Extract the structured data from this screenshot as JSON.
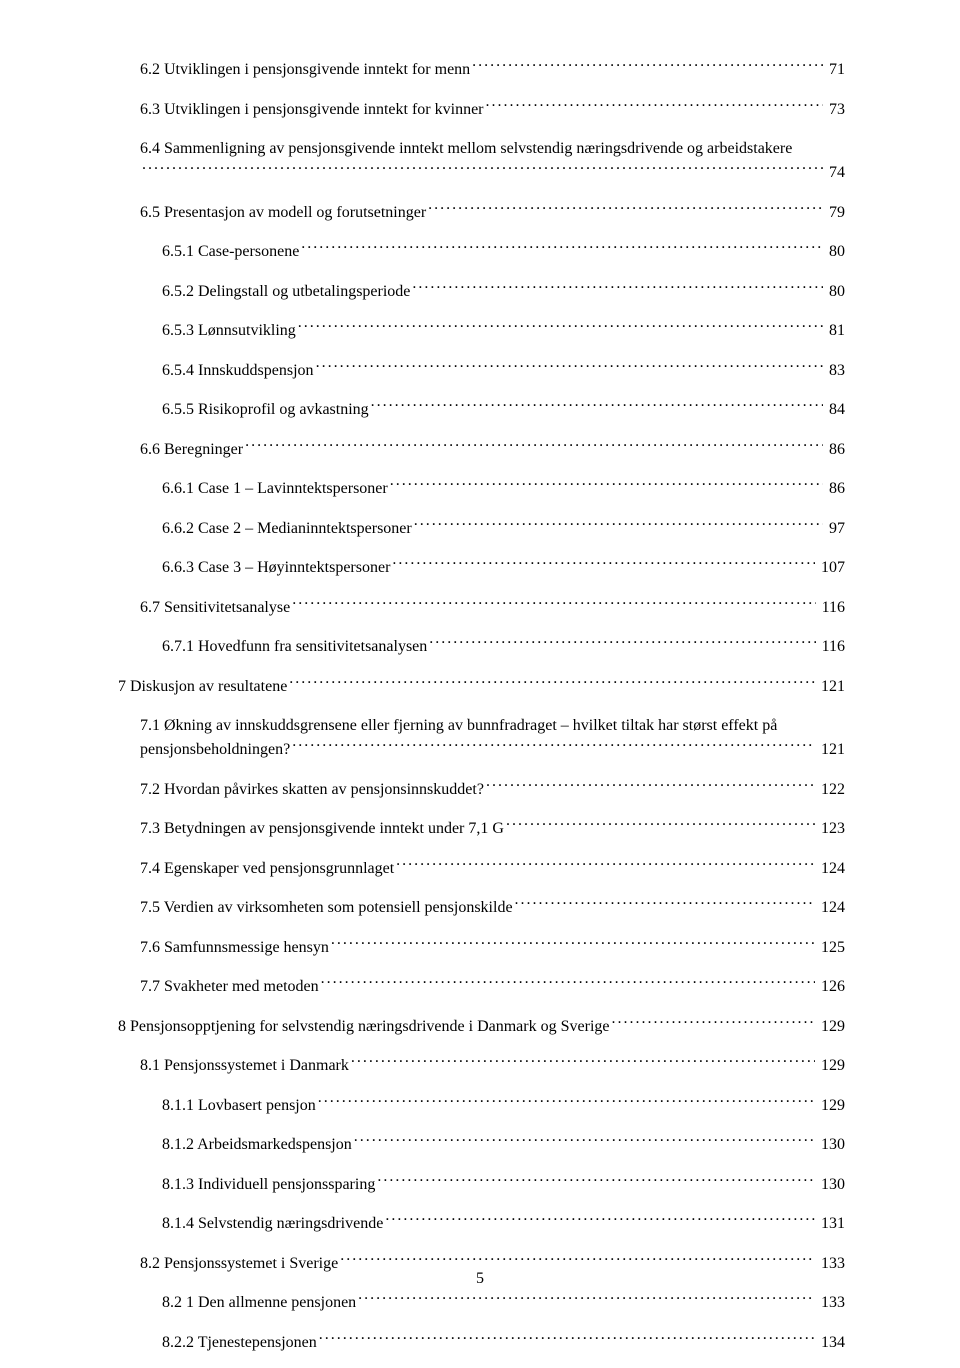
{
  "page_number": "5",
  "entries": [
    {
      "level": 2,
      "title": "6.2 Utviklingen i pensjonsgivende inntekt for menn",
      "page": "71"
    },
    {
      "level": 2,
      "title": "6.3 Utviklingen i pensjonsgivende inntekt for kvinner",
      "page": "73"
    },
    {
      "level": 2,
      "wrap": true,
      "line1": "6.4 Sammenligning av pensjonsgivende inntekt mellom selvstendig næringsdrivende og arbeidstakere",
      "page": "74"
    },
    {
      "level": 2,
      "title": "6.5 Presentasjon av modell og forutsetninger",
      "page": "79"
    },
    {
      "level": 3,
      "title": "6.5.1 Case-personene",
      "page": "80"
    },
    {
      "level": 3,
      "title": "6.5.2 Delingstall og utbetalingsperiode",
      "page": "80"
    },
    {
      "level": 3,
      "title": "6.5.3 Lønnsutvikling",
      "page": "81"
    },
    {
      "level": 3,
      "title": "6.5.4 Innskuddspensjon",
      "page": "83"
    },
    {
      "level": 3,
      "title": "6.5.5 Risikoprofil og avkastning",
      "page": "84"
    },
    {
      "level": 2,
      "title": "6.6 Beregninger",
      "page": "86"
    },
    {
      "level": 3,
      "title": "6.6.1 Case 1 – Lavinntektspersoner",
      "page": "86"
    },
    {
      "level": 3,
      "title": "6.6.2 Case 2 – Medianinntektspersoner",
      "page": "97"
    },
    {
      "level": 3,
      "title": "6.6.3 Case 3 – Høyinntektspersoner",
      "page": "107"
    },
    {
      "level": 2,
      "title": "6.7 Sensitivitetsanalyse",
      "page": "116"
    },
    {
      "level": 3,
      "title": "6.7.1 Hovedfunn fra sensitivitetsanalysen",
      "page": "116"
    },
    {
      "level": 1,
      "title": "7 Diskusjon av resultatene",
      "page": "121"
    },
    {
      "level": 2,
      "wrap": true,
      "line1": "7.1 Økning av innskuddsgrensene eller fjerning av bunnfradraget – hvilket tiltak har størst effekt på",
      "line2": "pensjonsbeholdningen?",
      "page": "121"
    },
    {
      "level": 2,
      "title": "7.2 Hvordan påvirkes skatten av pensjonsinnskuddet?",
      "page": "122"
    },
    {
      "level": 2,
      "title": "7.3 Betydningen av pensjonsgivende inntekt under 7,1 G",
      "page": "123"
    },
    {
      "level": 2,
      "title": "7.4 Egenskaper ved pensjonsgrunnlaget",
      "page": "124"
    },
    {
      "level": 2,
      "title": "7.5 Verdien av virksomheten som potensiell pensjonskilde",
      "page": "124"
    },
    {
      "level": 2,
      "title": "7.6 Samfunnsmessige hensyn",
      "page": "125"
    },
    {
      "level": 2,
      "title": "7.7 Svakheter med metoden",
      "page": "126"
    },
    {
      "level": 1,
      "title": "8 Pensjonsopptjening for selvstendig næringsdrivende i Danmark og Sverige",
      "page": "129"
    },
    {
      "level": 2,
      "title": "8.1 Pensjonssystemet i Danmark",
      "page": "129"
    },
    {
      "level": 3,
      "title": "8.1.1 Lovbasert pensjon",
      "page": "129"
    },
    {
      "level": 3,
      "title": "8.1.2 Arbeidsmarkedspensjon",
      "page": "130"
    },
    {
      "level": 3,
      "title": "8.1.3 Individuell pensjonssparing",
      "page": "130"
    },
    {
      "level": 3,
      "title": "8.1.4 Selvstendig næringsdrivende",
      "page": "131"
    },
    {
      "level": 2,
      "title": "8.2 Pensjonssystemet i Sverige",
      "page": "133"
    },
    {
      "level": 3,
      "title": "8.2 1 Den allmenne pensjonen",
      "page": "133"
    },
    {
      "level": 3,
      "title": "8.2.2 Tjenestepensjonen",
      "page": "134"
    }
  ]
}
